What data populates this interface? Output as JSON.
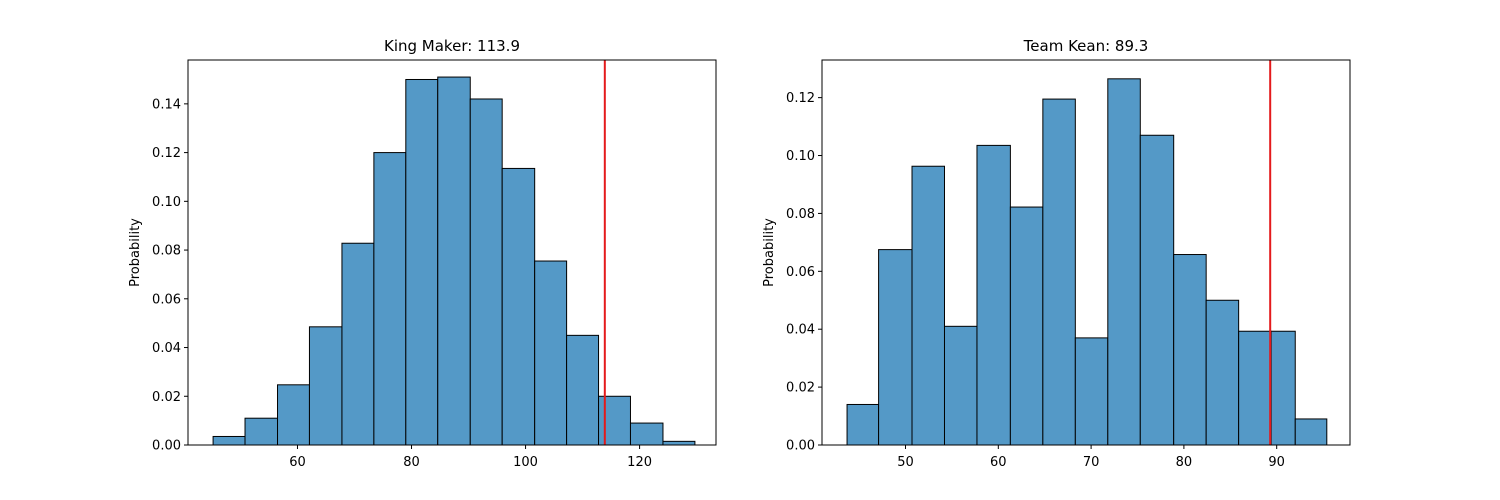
{
  "chart_data": [
    {
      "type": "bar",
      "title": "King Maker: 113.9",
      "xlabel": "",
      "ylabel": "Probability",
      "xlim": [
        40.8,
        133.4
      ],
      "ylim": [
        0,
        0.158
      ],
      "xticks": [
        60,
        80,
        100,
        120
      ],
      "yticks": [
        0.0,
        0.02,
        0.04,
        0.06,
        0.08,
        0.1,
        0.12,
        0.14
      ],
      "bin_edges": [
        45.2,
        50.8,
        56.5,
        62.1,
        67.8,
        73.4,
        79.0,
        84.6,
        90.3,
        95.9,
        101.6,
        107.2,
        112.8,
        118.4,
        124.1,
        129.7
      ],
      "values": [
        0.0035,
        0.011,
        0.0247,
        0.0485,
        0.0828,
        0.12,
        0.15,
        0.151,
        0.142,
        0.1135,
        0.0755,
        0.045,
        0.02,
        0.009,
        0.0015
      ],
      "reference_line": 113.9,
      "reference_color": "#e41a1c",
      "bar_color": "#5499c7",
      "grid": false
    },
    {
      "type": "bar",
      "title": "Team Kean: 89.3",
      "xlabel": "",
      "ylabel": "Probability",
      "xlim": [
        41.0,
        97.9
      ],
      "ylim": [
        0,
        0.133
      ],
      "xticks": [
        50,
        60,
        70,
        80,
        90
      ],
      "yticks": [
        0.0,
        0.02,
        0.04,
        0.06,
        0.08,
        0.1,
        0.12
      ],
      "bin_edges": [
        43.7,
        47.1,
        50.7,
        54.2,
        57.7,
        61.3,
        64.8,
        68.3,
        71.8,
        75.3,
        78.9,
        82.4,
        85.9,
        89.4,
        92.0,
        95.4
      ],
      "values": [
        0.014,
        0.0675,
        0.0963,
        0.041,
        0.1035,
        0.0822,
        0.1195,
        0.037,
        0.1265,
        0.107,
        0.0658,
        0.05,
        0.0393,
        0.0393,
        0.009
      ],
      "reference_line": 89.3,
      "reference_color": "#e41a1c",
      "bar_color": "#5499c7",
      "grid": false
    }
  ]
}
